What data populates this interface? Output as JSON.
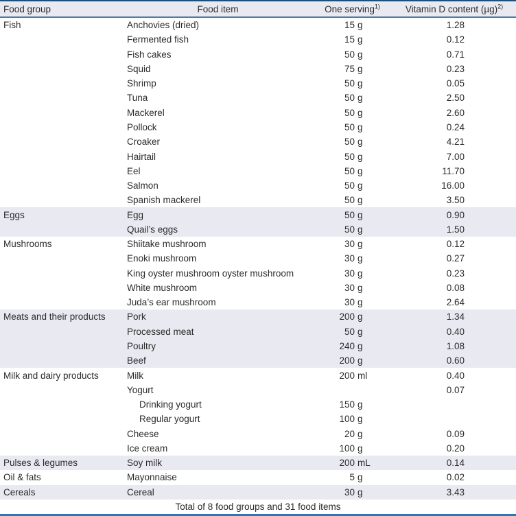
{
  "header": {
    "food_group": "Food group",
    "food_item": "Food item",
    "one_serving": "One serving",
    "one_serving_sup": "1)",
    "vitamin_d": "Vitamin D content (µg)",
    "vitamin_d_sup": "2)"
  },
  "groups": [
    {
      "name": "Fish",
      "shaded": false,
      "items": [
        {
          "food": "Anchovies (dried)",
          "amount": "15",
          "unit": "g",
          "vitd": "1.28",
          "indent": false
        },
        {
          "food": "Fermented fish",
          "amount": "15",
          "unit": "g",
          "vitd": "0.12",
          "indent": false
        },
        {
          "food": "Fish cakes",
          "amount": "50",
          "unit": "g",
          "vitd": "0.71",
          "indent": false
        },
        {
          "food": "Squid",
          "amount": "75",
          "unit": "g",
          "vitd": "0.23",
          "indent": false
        },
        {
          "food": "Shrimp",
          "amount": "50",
          "unit": "g",
          "vitd": "0.05",
          "indent": false
        },
        {
          "food": "Tuna",
          "amount": "50",
          "unit": "g",
          "vitd": "2.50",
          "indent": false
        },
        {
          "food": "Mackerel",
          "amount": "50",
          "unit": "g",
          "vitd": "2.60",
          "indent": false
        },
        {
          "food": "Pollock",
          "amount": "50",
          "unit": "g",
          "vitd": "0.24",
          "indent": false
        },
        {
          "food": "Croaker",
          "amount": "50",
          "unit": "g",
          "vitd": "4.21",
          "indent": false
        },
        {
          "food": "Hairtail",
          "amount": "50",
          "unit": "g",
          "vitd": "7.00",
          "indent": false
        },
        {
          "food": "Eel",
          "amount": "50",
          "unit": "g",
          "vitd": "11.70",
          "indent": false
        },
        {
          "food": "Salmon",
          "amount": "50",
          "unit": "g",
          "vitd": "16.00",
          "indent": false
        },
        {
          "food": "Spanish mackerel",
          "amount": "50",
          "unit": "g",
          "vitd": "3.50",
          "indent": false
        }
      ]
    },
    {
      "name": "Eggs",
      "shaded": true,
      "items": [
        {
          "food": "Egg",
          "amount": "50",
          "unit": "g",
          "vitd": "0.90",
          "indent": false
        },
        {
          "food": "Quail’s eggs",
          "amount": "50",
          "unit": "g",
          "vitd": "1.50",
          "indent": false
        }
      ]
    },
    {
      "name": "Mushrooms",
      "shaded": false,
      "items": [
        {
          "food": "Shiitake mushroom",
          "amount": "30",
          "unit": "g",
          "vitd": "0.12",
          "indent": false
        },
        {
          "food": "Enoki mushroom",
          "amount": "30",
          "unit": "g",
          "vitd": "0.27",
          "indent": false
        },
        {
          "food": "King oyster mushroom oyster mushroom",
          "amount": "30",
          "unit": "g",
          "vitd": "0.23",
          "indent": false
        },
        {
          "food": "White mushroom",
          "amount": "30",
          "unit": "g",
          "vitd": "0.08",
          "indent": false
        },
        {
          "food": "Juda’s ear mushroom",
          "amount": "30",
          "unit": "g",
          "vitd": "2.64",
          "indent": false
        }
      ]
    },
    {
      "name": "Meats and their products",
      "shaded": true,
      "items": [
        {
          "food": "Pork",
          "amount": "200",
          "unit": "g",
          "vitd": "1.34",
          "indent": false
        },
        {
          "food": "Processed meat",
          "amount": "50",
          "unit": "g",
          "vitd": "0.40",
          "indent": false
        },
        {
          "food": "Poultry",
          "amount": "240",
          "unit": "g",
          "vitd": "1.08",
          "indent": false
        },
        {
          "food": "Beef",
          "amount": "200",
          "unit": "g",
          "vitd": "0.60",
          "indent": false
        }
      ]
    },
    {
      "name": "Milk and dairy products",
      "shaded": false,
      "items": [
        {
          "food": "Milk",
          "amount": "200",
          "unit": "ml",
          "vitd": "0.40",
          "indent": false
        },
        {
          "food": "Yogurt",
          "amount": "",
          "unit": "",
          "vitd": "0.07",
          "indent": false
        },
        {
          "food": "Drinking yogurt",
          "amount": "150",
          "unit": "g",
          "vitd": "",
          "indent": true
        },
        {
          "food": "Regular yogurt",
          "amount": "100",
          "unit": "g",
          "vitd": "",
          "indent": true
        },
        {
          "food": "Cheese",
          "amount": "20",
          "unit": "g",
          "vitd": "0.09",
          "indent": false
        },
        {
          "food": "Ice cream",
          "amount": "100",
          "unit": "g",
          "vitd": "0.20",
          "indent": false
        }
      ]
    },
    {
      "name": "Pulses & legumes",
      "shaded": true,
      "items": [
        {
          "food": "Soy milk",
          "amount": "200",
          "unit": "mL",
          "vitd": "0.14",
          "indent": false
        }
      ]
    },
    {
      "name": "Oil & fats",
      "shaded": false,
      "items": [
        {
          "food": "Mayonnaise",
          "amount": "5",
          "unit": "g",
          "vitd": "0.02",
          "indent": false
        }
      ]
    },
    {
      "name": "Cereals",
      "shaded": true,
      "items": [
        {
          "food": "Cereal",
          "amount": "30",
          "unit": "g",
          "vitd": "3.43",
          "indent": false
        }
      ]
    }
  ],
  "footer": "Total of 8 food groups and 31 food items",
  "colors": {
    "top_border": "#1d4f7c",
    "header_underline": "#4d7ba6",
    "bottom_border": "#2e75b6",
    "shaded_row_bg": "#e9e9f2",
    "text": "#2b2b2b"
  }
}
